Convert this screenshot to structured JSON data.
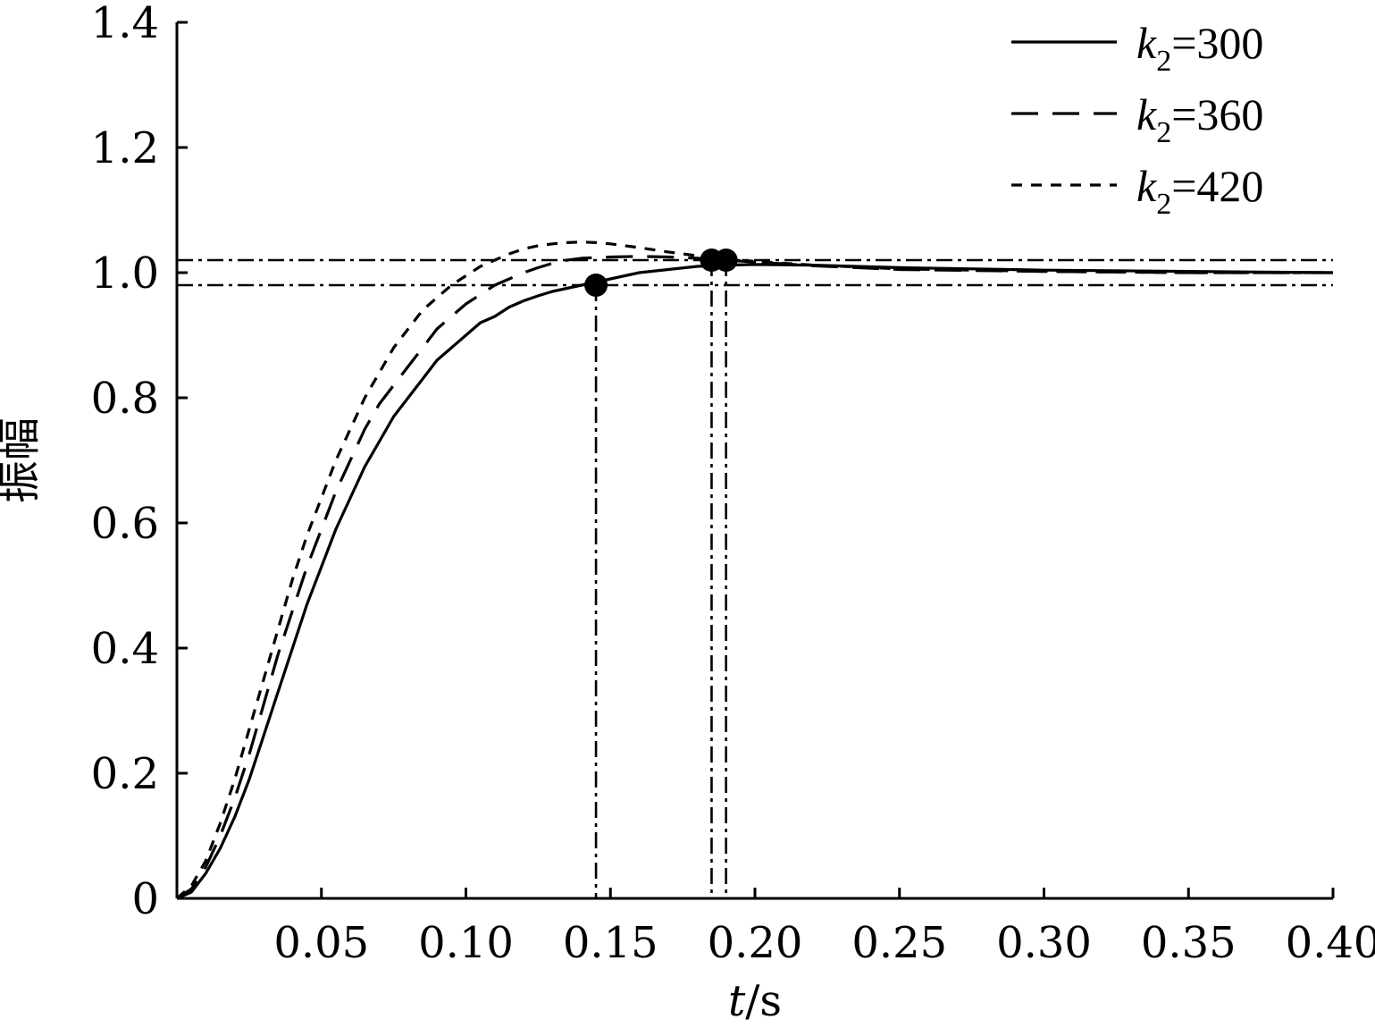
{
  "chart_data": {
    "type": "line",
    "xlabel": "t",
    "xlabel_unit": "s",
    "ylabel": "振幅",
    "xlim": [
      0,
      0.4
    ],
    "ylim": [
      0,
      1.4
    ],
    "x_ticks": [
      0.05,
      0.1,
      0.15,
      0.2,
      0.25,
      0.3,
      0.35,
      0.4
    ],
    "x_tick_labels": [
      "0.05",
      "0.10",
      "0.15",
      "0.20",
      "0.25",
      "0.30",
      "0.35",
      "0.40"
    ],
    "y_ticks": [
      0,
      0.2,
      0.4,
      0.6,
      0.8,
      1.0,
      1.2,
      1.4
    ],
    "y_tick_labels": [
      "0",
      "0.2",
      "0.4",
      "0.6",
      "0.8",
      "1.0",
      "1.2",
      "1.4"
    ],
    "grid": false,
    "legend_position": "top-right",
    "series": [
      {
        "name": "k2=300",
        "legend": {
          "var": "k",
          "sub": "2",
          "rest": "=300"
        },
        "style": "solid",
        "x": [
          0,
          0.005,
          0.01,
          0.015,
          0.02,
          0.025,
          0.03,
          0.035,
          0.04,
          0.045,
          0.05,
          0.055,
          0.06,
          0.065,
          0.07,
          0.075,
          0.08,
          0.085,
          0.09,
          0.095,
          0.1,
          0.105,
          0.11,
          0.115,
          0.12,
          0.125,
          0.13,
          0.135,
          0.14,
          0.145,
          0.15,
          0.155,
          0.16,
          0.17,
          0.18,
          0.19,
          0.2,
          0.22,
          0.25,
          0.3,
          0.35,
          0.4
        ],
        "y": [
          0,
          0.01,
          0.04,
          0.08,
          0.13,
          0.19,
          0.26,
          0.33,
          0.4,
          0.47,
          0.53,
          0.59,
          0.64,
          0.69,
          0.73,
          0.77,
          0.8,
          0.83,
          0.86,
          0.88,
          0.9,
          0.92,
          0.93,
          0.945,
          0.955,
          0.963,
          0.97,
          0.975,
          0.98,
          0.985,
          0.99,
          0.995,
          1.0,
          1.005,
          1.01,
          1.012,
          1.013,
          1.012,
          1.008,
          1.004,
          1.002,
          1.0
        ]
      },
      {
        "name": "k2=360",
        "legend": {
          "var": "k",
          "sub": "2",
          "rest": "=360"
        },
        "style": "dashed",
        "x": [
          0,
          0.005,
          0.01,
          0.015,
          0.02,
          0.025,
          0.03,
          0.035,
          0.04,
          0.045,
          0.05,
          0.055,
          0.06,
          0.065,
          0.07,
          0.075,
          0.08,
          0.085,
          0.09,
          0.095,
          0.1,
          0.105,
          0.11,
          0.115,
          0.12,
          0.125,
          0.13,
          0.135,
          0.14,
          0.15,
          0.16,
          0.17,
          0.18,
          0.19,
          0.2,
          0.22,
          0.25,
          0.3,
          0.35,
          0.4
        ],
        "y": [
          0,
          0.015,
          0.05,
          0.1,
          0.16,
          0.23,
          0.31,
          0.39,
          0.46,
          0.53,
          0.59,
          0.65,
          0.7,
          0.75,
          0.79,
          0.82,
          0.85,
          0.88,
          0.91,
          0.93,
          0.95,
          0.965,
          0.98,
          0.99,
          1.0,
          1.008,
          1.015,
          1.02,
          1.023,
          1.025,
          1.026,
          1.025,
          1.023,
          1.02,
          1.017,
          1.011,
          1.005,
          1.002,
          1.0,
          1.0
        ]
      },
      {
        "name": "k2=420",
        "legend": {
          "var": "k",
          "sub": "2",
          "rest": "=420"
        },
        "style": "dotted",
        "x": [
          0,
          0.005,
          0.01,
          0.015,
          0.02,
          0.025,
          0.03,
          0.035,
          0.04,
          0.045,
          0.05,
          0.055,
          0.06,
          0.065,
          0.07,
          0.075,
          0.08,
          0.085,
          0.09,
          0.095,
          0.1,
          0.105,
          0.11,
          0.115,
          0.12,
          0.125,
          0.13,
          0.135,
          0.14,
          0.145,
          0.15,
          0.16,
          0.17,
          0.18,
          0.19,
          0.2,
          0.22,
          0.25,
          0.3,
          0.35,
          0.4
        ],
        "y": [
          0,
          0.02,
          0.06,
          0.12,
          0.19,
          0.27,
          0.35,
          0.43,
          0.51,
          0.58,
          0.64,
          0.7,
          0.75,
          0.8,
          0.84,
          0.88,
          0.91,
          0.94,
          0.96,
          0.98,
          0.995,
          1.01,
          1.02,
          1.03,
          1.038,
          1.043,
          1.046,
          1.048,
          1.049,
          1.048,
          1.046,
          1.04,
          1.033,
          1.027,
          1.022,
          1.018,
          1.012,
          1.006,
          1.002,
          1.0,
          1.0
        ]
      }
    ],
    "reference_lines": {
      "horizontal": [
        1.02,
        0.98
      ],
      "vertical": [
        0.145,
        0.185,
        0.19
      ],
      "style": "dashdot"
    },
    "markers": [
      {
        "x": 0.145,
        "y": 0.98
      },
      {
        "x": 0.185,
        "y": 1.02
      },
      {
        "x": 0.19,
        "y": 1.02
      }
    ]
  }
}
